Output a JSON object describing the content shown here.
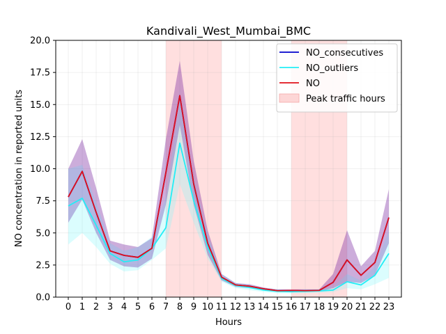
{
  "chart_data": {
    "type": "line",
    "title": "Kandivali_West_Mumbai_BMC",
    "xlabel": "Hours",
    "ylabel": "NO concentration in reported units",
    "x": [
      0,
      1,
      2,
      3,
      4,
      5,
      6,
      7,
      8,
      9,
      10,
      11,
      12,
      13,
      14,
      15,
      16,
      17,
      18,
      19,
      20,
      21,
      22,
      23
    ],
    "x_tick_labels": [
      "0",
      "1",
      "2",
      "3",
      "4",
      "5",
      "6",
      "7",
      "8",
      "9",
      "10",
      "11",
      "12",
      "13",
      "14",
      "15",
      "16",
      "17",
      "18",
      "19",
      "20",
      "21",
      "22",
      "23"
    ],
    "ylim": [
      0,
      20
    ],
    "y_ticks": [
      0,
      2.5,
      5,
      7.5,
      10,
      12.5,
      15,
      17.5,
      20
    ],
    "y_tick_labels": [
      "0.0",
      "2.5",
      "5.0",
      "7.5",
      "10.0",
      "12.5",
      "15.0",
      "17.5",
      "20.0"
    ],
    "xlim": [
      -0.9,
      23.9
    ],
    "grid": true,
    "legend_position": "top-right",
    "peak_hours": [
      [
        7,
        11
      ],
      [
        16,
        20
      ]
    ],
    "series": [
      {
        "name": "NO_consecutives",
        "color": "#0000cc",
        "band_color": "#3b3bd0",
        "values": [
          7.8,
          9.8,
          6.6,
          3.6,
          3.25,
          3.1,
          3.8,
          9.7,
          15.7,
          8.8,
          4.2,
          1.55,
          0.95,
          0.85,
          0.65,
          0.5,
          0.52,
          0.5,
          0.52,
          1.15,
          2.9,
          1.7,
          2.7,
          6.2
        ],
        "lower": [
          5.8,
          7.6,
          5.0,
          2.9,
          2.4,
          2.3,
          3.0,
          7.2,
          13.4,
          7.2,
          3.3,
          1.3,
          0.8,
          0.7,
          0.55,
          0.42,
          0.44,
          0.42,
          0.44,
          0.7,
          1.2,
          1.1,
          1.7,
          4.2
        ],
        "upper": [
          10.0,
          12.3,
          8.5,
          4.4,
          4.1,
          3.9,
          4.6,
          12.3,
          18.4,
          10.6,
          5.2,
          1.8,
          1.1,
          1.0,
          0.75,
          0.6,
          0.6,
          0.6,
          0.6,
          1.8,
          5.2,
          2.4,
          3.6,
          8.4
        ]
      },
      {
        "name": "NO_outliers",
        "color": "#22eef6",
        "band_color": "#7ff7fb",
        "values": [
          7.1,
          7.7,
          5.6,
          3.4,
          2.75,
          2.9,
          3.8,
          5.4,
          12.0,
          7.5,
          3.9,
          1.45,
          0.9,
          0.75,
          0.55,
          0.45,
          0.42,
          0.45,
          0.48,
          0.55,
          1.2,
          0.95,
          1.7,
          3.4
        ],
        "lower": [
          4.1,
          5.0,
          3.9,
          2.6,
          2.0,
          2.1,
          2.9,
          3.8,
          8.8,
          5.8,
          3.0,
          1.2,
          0.7,
          0.55,
          0.4,
          0.3,
          0.3,
          0.32,
          0.34,
          0.4,
          0.7,
          0.6,
          1.0,
          1.5
        ],
        "upper": [
          10.0,
          10.3,
          7.4,
          4.2,
          3.6,
          3.9,
          4.7,
          7.8,
          15.3,
          9.2,
          4.9,
          1.8,
          1.1,
          0.95,
          0.7,
          0.6,
          0.55,
          0.6,
          0.62,
          0.8,
          1.8,
          1.3,
          2.4,
          5.2
        ]
      },
      {
        "name": "NO",
        "color": "#e0101a",
        "band_color": "#d01b6a",
        "values": [
          7.8,
          9.8,
          6.6,
          3.6,
          3.25,
          3.1,
          3.8,
          9.7,
          15.7,
          8.8,
          4.2,
          1.55,
          0.95,
          0.85,
          0.65,
          0.5,
          0.52,
          0.5,
          0.52,
          1.15,
          2.9,
          1.7,
          2.7,
          6.2
        ],
        "lower": [
          5.8,
          7.6,
          5.0,
          2.9,
          2.4,
          2.3,
          3.0,
          7.2,
          13.4,
          7.2,
          3.3,
          1.3,
          0.8,
          0.7,
          0.55,
          0.42,
          0.44,
          0.42,
          0.44,
          0.7,
          1.2,
          1.1,
          1.7,
          4.2
        ],
        "upper": [
          10.0,
          12.3,
          8.5,
          4.4,
          4.1,
          3.9,
          4.6,
          12.3,
          18.4,
          10.6,
          5.2,
          1.8,
          1.1,
          1.0,
          0.75,
          0.6,
          0.6,
          0.6,
          0.6,
          1.8,
          5.2,
          2.4,
          3.6,
          8.4
        ]
      }
    ],
    "legend": [
      {
        "label": "NO_consecutives",
        "kind": "line",
        "color": "#0000cc"
      },
      {
        "label": "NO_outliers",
        "kind": "line",
        "color": "#22eef6"
      },
      {
        "label": "NO",
        "kind": "line",
        "color": "#e0101a"
      },
      {
        "label": "Peak traffic hours",
        "kind": "patch",
        "color": "#fdd6d6"
      }
    ]
  }
}
